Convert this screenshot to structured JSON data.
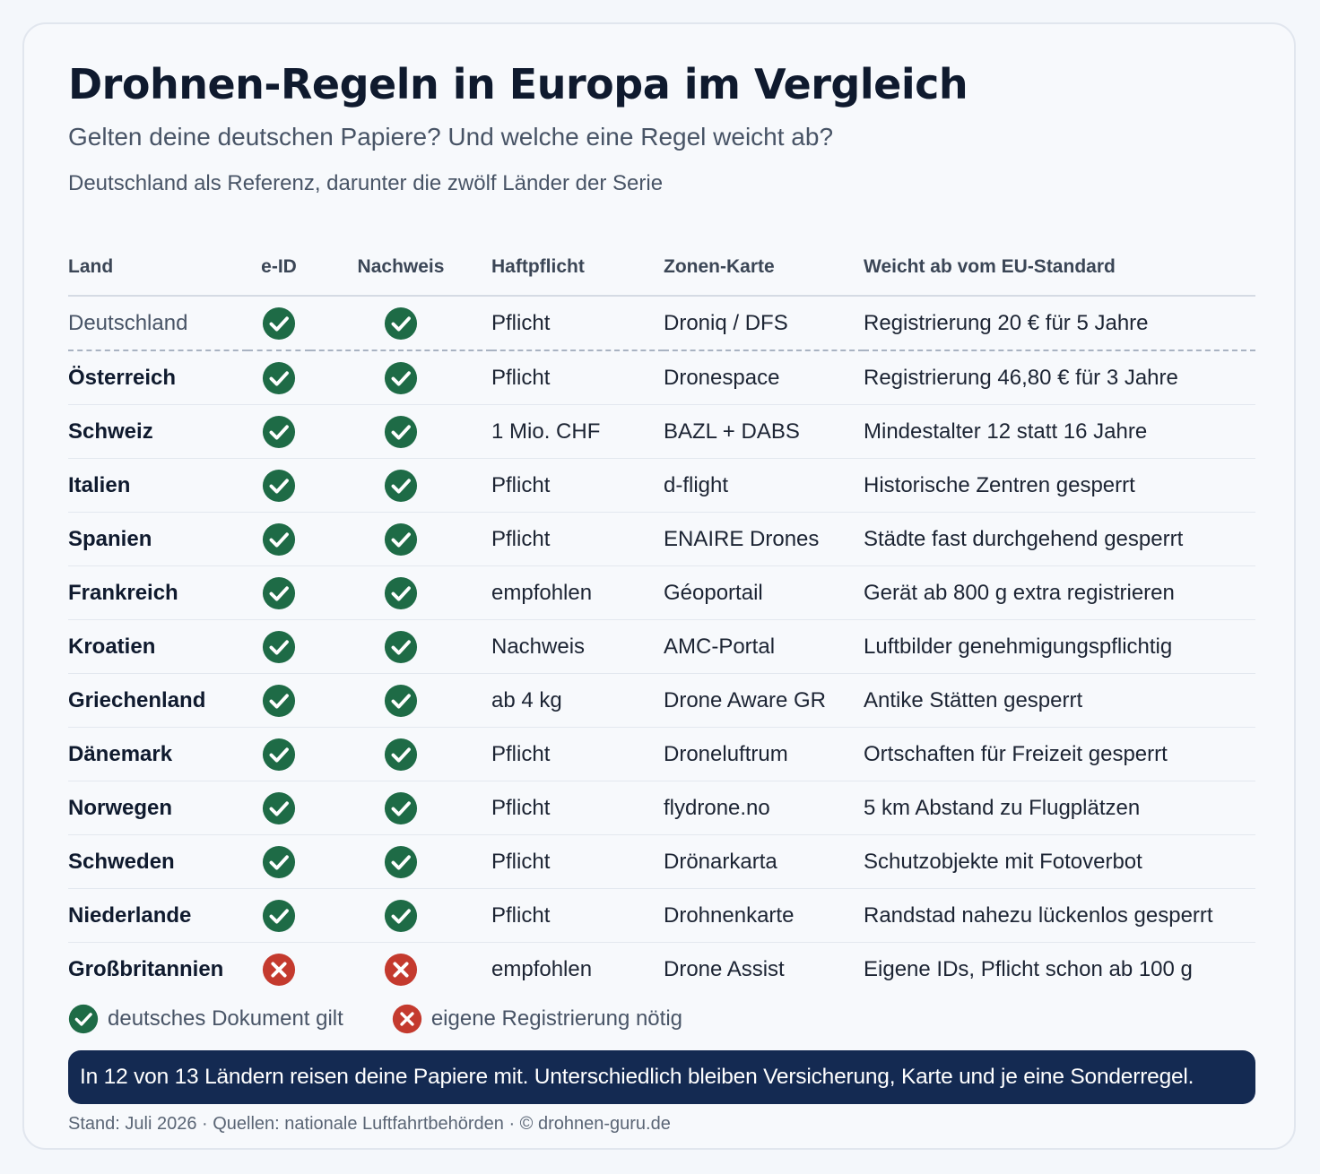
{
  "title": "Drohnen-Regeln in Europa im Vergleich",
  "subtitle": "Gelten deine deutschen Papiere? Und welche eine Regel weicht ab?",
  "reference_note": "Deutschland als Referenz, darunter die zwölf Länder der Serie",
  "columns": [
    "Land",
    "e-ID",
    "Nachweis",
    "Haftpflicht",
    "Zonen-Karte",
    "Weicht ab vom EU-Standard"
  ],
  "status_colors": {
    "valid": "#1e6b46",
    "invalid": "#c43a2e"
  },
  "rows": [
    {
      "land": "Deutschland",
      "eid": "check",
      "nachweis": "check",
      "haftpflicht": "Pflicht",
      "karte": "Droniq / DFS",
      "abweichung": "Registrierung 20 € für 5 Jahre"
    },
    {
      "land": "Österreich",
      "eid": "check",
      "nachweis": "check",
      "haftpflicht": "Pflicht",
      "karte": "Dronespace",
      "abweichung": "Registrierung 46,80 € für 3 Jahre"
    },
    {
      "land": "Schweiz",
      "eid": "check",
      "nachweis": "check",
      "haftpflicht": "1 Mio. CHF",
      "karte": "BAZL + DABS",
      "abweichung": "Mindestalter 12 statt 16 Jahre"
    },
    {
      "land": "Italien",
      "eid": "check",
      "nachweis": "check",
      "haftpflicht": "Pflicht",
      "karte": "d-flight",
      "abweichung": "Historische Zentren gesperrt"
    },
    {
      "land": "Spanien",
      "eid": "check",
      "nachweis": "check",
      "haftpflicht": "Pflicht",
      "karte": "ENAIRE Drones",
      "abweichung": "Städte fast durchgehend gesperrt"
    },
    {
      "land": "Frankreich",
      "eid": "check",
      "nachweis": "check",
      "haftpflicht": "empfohlen",
      "karte": "Géoportail",
      "abweichung": "Gerät ab 800 g extra registrieren"
    },
    {
      "land": "Kroatien",
      "eid": "check",
      "nachweis": "check",
      "haftpflicht": "Nachweis",
      "karte": "AMC-Portal",
      "abweichung": "Luftbilder genehmigungspflichtig"
    },
    {
      "land": "Griechenland",
      "eid": "check",
      "nachweis": "check",
      "haftpflicht": "ab 4 kg",
      "karte": "Drone Aware GR",
      "abweichung": "Antike Stätten gesperrt"
    },
    {
      "land": "Dänemark",
      "eid": "check",
      "nachweis": "check",
      "haftpflicht": "Pflicht",
      "karte": "Droneluftrum",
      "abweichung": "Ortschaften für Freizeit gesperrt"
    },
    {
      "land": "Norwegen",
      "eid": "check",
      "nachweis": "check",
      "haftpflicht": "Pflicht",
      "karte": "flydrone.no",
      "abweichung": "5 km Abstand zu Flugplätzen"
    },
    {
      "land": "Schweden",
      "eid": "check",
      "nachweis": "check",
      "haftpflicht": "Pflicht",
      "karte": "Drönarkarta",
      "abweichung": "Schutzobjekte mit Fotoverbot"
    },
    {
      "land": "Niederlande",
      "eid": "check",
      "nachweis": "check",
      "haftpflicht": "Pflicht",
      "karte": "Drohnenkarte",
      "abweichung": "Randstad nahezu lückenlos gesperrt"
    },
    {
      "land": "Großbritannien",
      "eid": "cross",
      "nachweis": "cross",
      "haftpflicht": "empfohlen",
      "karte": "Drone Assist",
      "abweichung": "Eigene IDs, Pflicht schon ab 100 g"
    }
  ],
  "legend": {
    "valid": "deutsches Dokument gilt",
    "invalid": "eigene Registrierung nötig"
  },
  "summary": "In 12 von 13 Ländern reisen deine Papiere mit. Unterschiedlich bleiben Versicherung, Karte und je eine Sonderregel.",
  "footer": "Stand: Juli 2026 · Quellen: nationale Luftfahrtbehörden · © drohnen-guru.de"
}
